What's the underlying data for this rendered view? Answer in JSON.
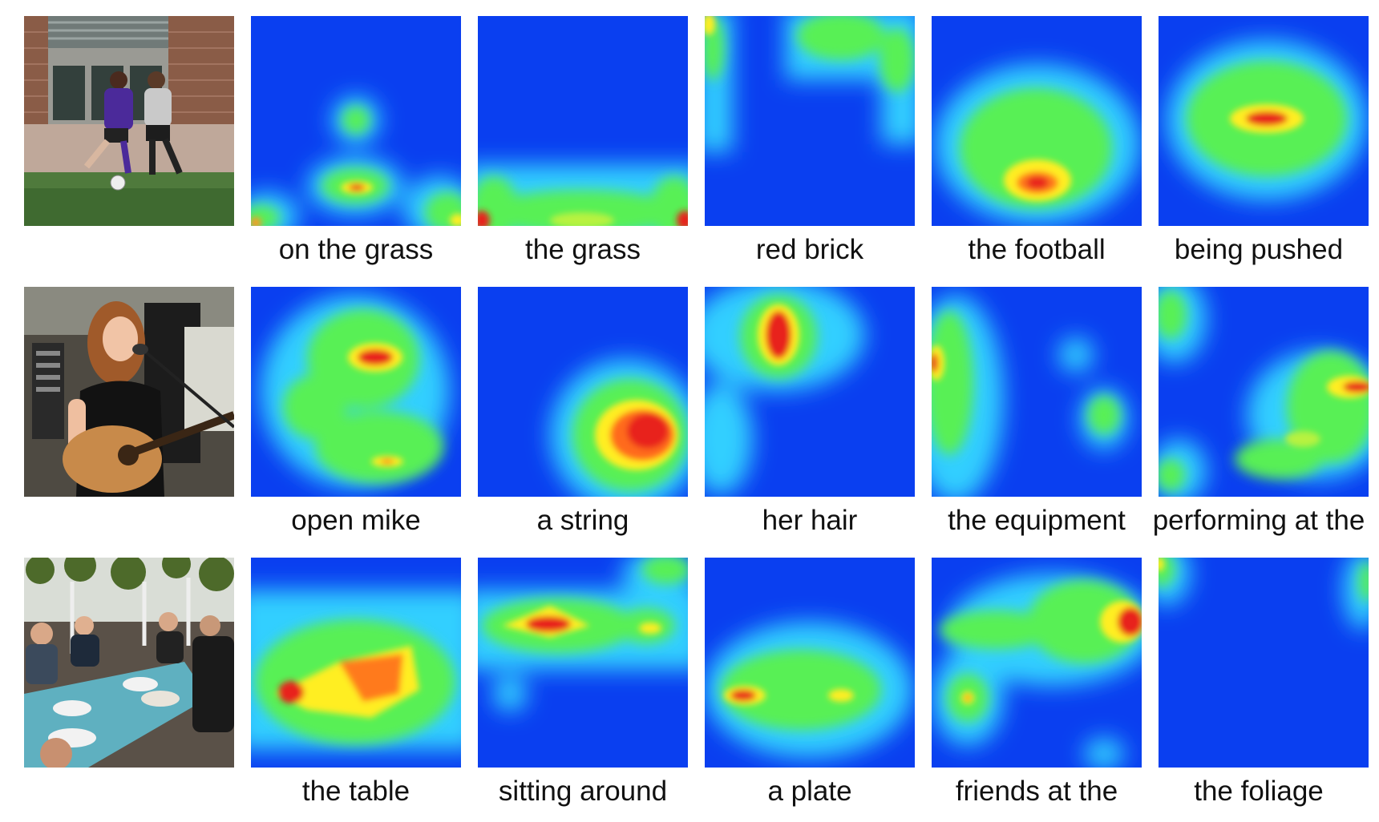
{
  "figure": {
    "rows": [
      {
        "photo_icon": "soccer-players-photo",
        "cells": [
          {
            "caption": "on the grass"
          },
          {
            "caption": "the grass"
          },
          {
            "caption": "red brick"
          },
          {
            "caption": "the football"
          },
          {
            "caption": "being pushed"
          }
        ]
      },
      {
        "photo_icon": "woman-guitar-photo",
        "cells": [
          {
            "caption": "open mike"
          },
          {
            "caption": "a string"
          },
          {
            "caption": "her hair"
          },
          {
            "caption": "the equipment"
          },
          {
            "caption": "performing at the"
          }
        ]
      },
      {
        "photo_icon": "friends-dining-photo",
        "cells": [
          {
            "caption": "the table"
          },
          {
            "caption": "sitting around"
          },
          {
            "caption": "a plate"
          },
          {
            "caption": "friends at the"
          },
          {
            "caption": "the foliage"
          }
        ]
      }
    ],
    "colors": {
      "heatmap_background": "#0a3ff0",
      "heatmap_cool": "#33cfff",
      "heatmap_mid": "#59f055",
      "heatmap_warm": "#ffee22",
      "heatmap_hot": "#e8201a"
    }
  }
}
